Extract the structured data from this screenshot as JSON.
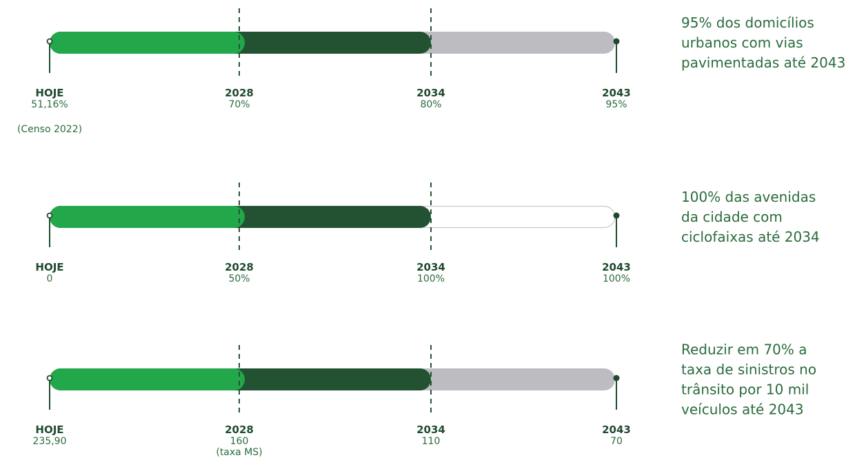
{
  "colors": {
    "light_green": "#22a84a",
    "dark_green": "#235233",
    "gray": "#bdbdc1",
    "outline": "#c8c8cc",
    "marker": "#1f4a2e",
    "text": "#2a6b3c"
  },
  "timelines": [
    {
      "goal_lines": [
        "95% dos domicílios",
        "urbanos com vias",
        "pavimentadas até 2043"
      ],
      "remaining_style": "gray",
      "milestones": [
        {
          "label": "HOJE",
          "value": "51,16%",
          "note": "(Censo 2022)"
        },
        {
          "label": "2028",
          "value": "70%"
        },
        {
          "label": "2034",
          "value": "80%"
        },
        {
          "label": "2043",
          "value": "95%"
        }
      ]
    },
    {
      "goal_lines": [
        "100% das avenidas",
        "da cidade com",
        "ciclofaixas até 2034"
      ],
      "remaining_style": "outline",
      "milestones": [
        {
          "label": "HOJE",
          "value": "0"
        },
        {
          "label": "2028",
          "value": "50%"
        },
        {
          "label": "2034",
          "value": "100%"
        },
        {
          "label": "2043",
          "value": "100%"
        }
      ]
    },
    {
      "goal_lines": [
        "Reduzir em 70% a",
        "taxa de sinistros no",
        "trânsito por 10 mil",
        "veículos até 2043"
      ],
      "remaining_style": "gray",
      "milestones": [
        {
          "label": "HOJE",
          "value": "235,90"
        },
        {
          "label": "2028",
          "value": "160",
          "note": "(taxa MS)"
        },
        {
          "label": "2034",
          "value": "110"
        },
        {
          "label": "2043",
          "value": "70"
        }
      ]
    }
  ]
}
